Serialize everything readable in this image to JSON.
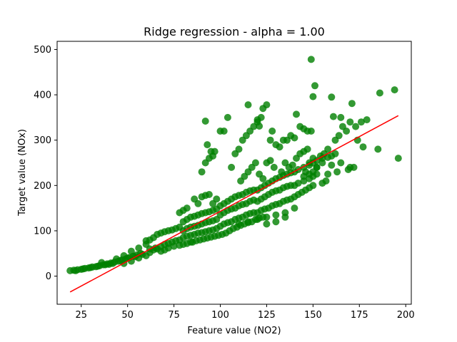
{
  "chart_data": {
    "type": "scatter",
    "title": "Ridge regression - alpha = 1.00",
    "xlabel": "Feature value (NO2)",
    "ylabel": "Target value (NOx)",
    "xlim": [
      12,
      203
    ],
    "ylim": [
      -62,
      518
    ],
    "xticks": [
      25,
      50,
      75,
      100,
      125,
      150,
      175,
      200
    ],
    "yticks": [
      0,
      100,
      200,
      300,
      400,
      500
    ],
    "grid": false,
    "colors": {
      "points": "#008000",
      "line": "#ff0000"
    },
    "series": [
      {
        "kind": "scatter",
        "points": [
          [
            19,
            12
          ],
          [
            21,
            13
          ],
          [
            23,
            14
          ],
          [
            25,
            15
          ],
          [
            27,
            17
          ],
          [
            29,
            18
          ],
          [
            31,
            20
          ],
          [
            33,
            21
          ],
          [
            35,
            23
          ],
          [
            37,
            25
          ],
          [
            39,
            27
          ],
          [
            41,
            29
          ],
          [
            43,
            31
          ],
          [
            45,
            33
          ],
          [
            47,
            36
          ],
          [
            49,
            38
          ],
          [
            51,
            41
          ],
          [
            53,
            44
          ],
          [
            55,
            47
          ],
          [
            57,
            50
          ],
          [
            22,
            12
          ],
          [
            26,
            16
          ],
          [
            30,
            19
          ],
          [
            34,
            22
          ],
          [
            38,
            25
          ],
          [
            42,
            28
          ],
          [
            46,
            34
          ],
          [
            50,
            40
          ],
          [
            54,
            43
          ],
          [
            58,
            48
          ],
          [
            36,
            30
          ],
          [
            40,
            26
          ],
          [
            44,
            38
          ],
          [
            48,
            45
          ],
          [
            52,
            55
          ],
          [
            56,
            62
          ],
          [
            60,
            70
          ],
          [
            48,
            28
          ],
          [
            52,
            33
          ],
          [
            56,
            40
          ],
          [
            60,
            45
          ],
          [
            62,
            52
          ],
          [
            64,
            58
          ],
          [
            66,
            60
          ],
          [
            68,
            65
          ],
          [
            70,
            70
          ],
          [
            72,
            72
          ],
          [
            74,
            75
          ],
          [
            76,
            78
          ],
          [
            78,
            80
          ],
          [
            60,
            78
          ],
          [
            62,
            80
          ],
          [
            64,
            85
          ],
          [
            66,
            92
          ],
          [
            68,
            95
          ],
          [
            70,
            98
          ],
          [
            72,
            100
          ],
          [
            74,
            102
          ],
          [
            76,
            105
          ],
          [
            78,
            108
          ],
          [
            62,
            60
          ],
          [
            65,
            62
          ],
          [
            68,
            55
          ],
          [
            70,
            58
          ],
          [
            72,
            62
          ],
          [
            75,
            66
          ],
          [
            78,
            68
          ],
          [
            80,
            70
          ],
          [
            82,
            72
          ],
          [
            84,
            75
          ],
          [
            80,
            85
          ],
          [
            82,
            88
          ],
          [
            84,
            90
          ],
          [
            86,
            92
          ],
          [
            88,
            95
          ],
          [
            90,
            96
          ],
          [
            92,
            98
          ],
          [
            94,
            100
          ],
          [
            96,
            102
          ],
          [
            98,
            105
          ],
          [
            80,
            100
          ],
          [
            82,
            105
          ],
          [
            84,
            108
          ],
          [
            86,
            110
          ],
          [
            88,
            112
          ],
          [
            90,
            115
          ],
          [
            92,
            118
          ],
          [
            94,
            120
          ],
          [
            96,
            122
          ],
          [
            98,
            125
          ],
          [
            80,
            120
          ],
          [
            82,
            125
          ],
          [
            84,
            130
          ],
          [
            86,
            132
          ],
          [
            88,
            135
          ],
          [
            90,
            138
          ],
          [
            92,
            140
          ],
          [
            94,
            142
          ],
          [
            96,
            145
          ],
          [
            98,
            148
          ],
          [
            85,
            75
          ],
          [
            87,
            78
          ],
          [
            89,
            80
          ],
          [
            91,
            82
          ],
          [
            93,
            84
          ],
          [
            95,
            86
          ],
          [
            97,
            88
          ],
          [
            99,
            90
          ],
          [
            101,
            92
          ],
          [
            103,
            95
          ],
          [
            100,
            110
          ],
          [
            102,
            115
          ],
          [
            104,
            118
          ],
          [
            106,
            120
          ],
          [
            108,
            125
          ],
          [
            110,
            128
          ],
          [
            112,
            130
          ],
          [
            114,
            135
          ],
          [
            116,
            138
          ],
          [
            118,
            140
          ],
          [
            100,
            135
          ],
          [
            102,
            140
          ],
          [
            104,
            145
          ],
          [
            106,
            148
          ],
          [
            108,
            150
          ],
          [
            110,
            155
          ],
          [
            112,
            158
          ],
          [
            114,
            160
          ],
          [
            116,
            165
          ],
          [
            118,
            168
          ],
          [
            100,
            155
          ],
          [
            102,
            160
          ],
          [
            104,
            165
          ],
          [
            106,
            170
          ],
          [
            108,
            175
          ],
          [
            110,
            178
          ],
          [
            112,
            180
          ],
          [
            114,
            185
          ],
          [
            116,
            188
          ],
          [
            118,
            190
          ],
          [
            105,
            100
          ],
          [
            107,
            105
          ],
          [
            109,
            108
          ],
          [
            111,
            112
          ],
          [
            113,
            115
          ],
          [
            115,
            118
          ],
          [
            117,
            120
          ],
          [
            119,
            125
          ],
          [
            121,
            128
          ],
          [
            123,
            130
          ],
          [
            120,
            140
          ],
          [
            122,
            145
          ],
          [
            124,
            148
          ],
          [
            126,
            150
          ],
          [
            128,
            155
          ],
          [
            130,
            158
          ],
          [
            132,
            160
          ],
          [
            134,
            165
          ],
          [
            136,
            168
          ],
          [
            138,
            170
          ],
          [
            120,
            165
          ],
          [
            122,
            170
          ],
          [
            124,
            175
          ],
          [
            126,
            180
          ],
          [
            128,
            185
          ],
          [
            130,
            188
          ],
          [
            132,
            190
          ],
          [
            134,
            195
          ],
          [
            136,
            198
          ],
          [
            138,
            200
          ],
          [
            120,
            190
          ],
          [
            122,
            195
          ],
          [
            124,
            200
          ],
          [
            126,
            205
          ],
          [
            128,
            210
          ],
          [
            130,
            215
          ],
          [
            132,
            218
          ],
          [
            134,
            222
          ],
          [
            136,
            225
          ],
          [
            138,
            228
          ],
          [
            110,
            115
          ],
          [
            115,
            120
          ],
          [
            120,
            125
          ],
          [
            125,
            130
          ],
          [
            130,
            135
          ],
          [
            135,
            140
          ],
          [
            125,
            115
          ],
          [
            130,
            120
          ],
          [
            135,
            130
          ],
          [
            140,
            150
          ],
          [
            140,
            175
          ],
          [
            142,
            180
          ],
          [
            144,
            185
          ],
          [
            146,
            190
          ],
          [
            148,
            195
          ],
          [
            150,
            200
          ],
          [
            145,
            210
          ],
          [
            148,
            215
          ],
          [
            150,
            220
          ],
          [
            152,
            225
          ],
          [
            140,
            230
          ],
          [
            142,
            235
          ],
          [
            145,
            240
          ],
          [
            148,
            245
          ],
          [
            150,
            250
          ],
          [
            152,
            255
          ],
          [
            155,
            260
          ],
          [
            158,
            262
          ],
          [
            160,
            265
          ],
          [
            162,
            270
          ],
          [
            140,
            200
          ],
          [
            142,
            205
          ],
          [
            145,
            220
          ],
          [
            148,
            225
          ],
          [
            150,
            230
          ],
          [
            152,
            240
          ],
          [
            155,
            250
          ],
          [
            160,
            245
          ],
          [
            165,
            250
          ],
          [
            170,
            240
          ],
          [
            90,
            230
          ],
          [
            92,
            250
          ],
          [
            94,
            260
          ],
          [
            96,
            265
          ],
          [
            95,
            275
          ],
          [
            93,
            290
          ],
          [
            92,
            342
          ],
          [
            97,
            275
          ],
          [
            100,
            320
          ],
          [
            102,
            320
          ],
          [
            104,
            350
          ],
          [
            106,
            240
          ],
          [
            108,
            270
          ],
          [
            110,
            280
          ],
          [
            112,
            300
          ],
          [
            114,
            310
          ],
          [
            116,
            320
          ],
          [
            118,
            330
          ],
          [
            120,
            340
          ],
          [
            122,
            350
          ],
          [
            115,
            378
          ],
          [
            120,
            345
          ],
          [
            121,
            331
          ],
          [
            123,
            370
          ],
          [
            125,
            378
          ],
          [
            127,
            300
          ],
          [
            128,
            320
          ],
          [
            130,
            290
          ],
          [
            132,
            285
          ],
          [
            134,
            300
          ],
          [
            136,
            300
          ],
          [
            138,
            310
          ],
          [
            140,
            305
          ],
          [
            141,
            357
          ],
          [
            143,
            330
          ],
          [
            145,
            325
          ],
          [
            147,
            320
          ],
          [
            149,
            320
          ],
          [
            150,
            396
          ],
          [
            151,
            420
          ],
          [
            149,
            478
          ],
          [
            150,
            260
          ],
          [
            152,
            240
          ],
          [
            154,
            265
          ],
          [
            156,
            270
          ],
          [
            158,
            280
          ],
          [
            160,
            395
          ],
          [
            161,
            352
          ],
          [
            162,
            300
          ],
          [
            164,
            310
          ],
          [
            165,
            350
          ],
          [
            166,
            330
          ],
          [
            168,
            320
          ],
          [
            170,
            340
          ],
          [
            171,
            381
          ],
          [
            173,
            330
          ],
          [
            174,
            300
          ],
          [
            176,
            340
          ],
          [
            177,
            285
          ],
          [
            179,
            345
          ],
          [
            185,
            280
          ],
          [
            186,
            404
          ],
          [
            194,
            411
          ],
          [
            196,
            260
          ],
          [
            172,
            240
          ],
          [
            169,
            235
          ],
          [
            163,
            230
          ],
          [
            158,
            225
          ],
          [
            155,
            205
          ],
          [
            157,
            210
          ],
          [
            133,
            230
          ],
          [
            135,
            250
          ],
          [
            137,
            240
          ],
          [
            139,
            245
          ],
          [
            141,
            260
          ],
          [
            143,
            270
          ],
          [
            145,
            275
          ],
          [
            147,
            280
          ],
          [
            146,
            230
          ],
          [
            148,
            250
          ],
          [
            111,
            210
          ],
          [
            113,
            220
          ],
          [
            115,
            230
          ],
          [
            117,
            240
          ],
          [
            119,
            250
          ],
          [
            121,
            225
          ],
          [
            123,
            215
          ],
          [
            125,
            250
          ],
          [
            127,
            255
          ],
          [
            129,
            240
          ],
          [
            86,
            170
          ],
          [
            88,
            160
          ],
          [
            90,
            175
          ],
          [
            92,
            178
          ],
          [
            94,
            180
          ],
          [
            96,
            160
          ],
          [
            98,
            170
          ],
          [
            78,
            140
          ],
          [
            80,
            145
          ],
          [
            82,
            150
          ]
        ]
      },
      {
        "kind": "line",
        "points": [
          [
            19,
            -35
          ],
          [
            196,
            354
          ]
        ]
      }
    ]
  }
}
